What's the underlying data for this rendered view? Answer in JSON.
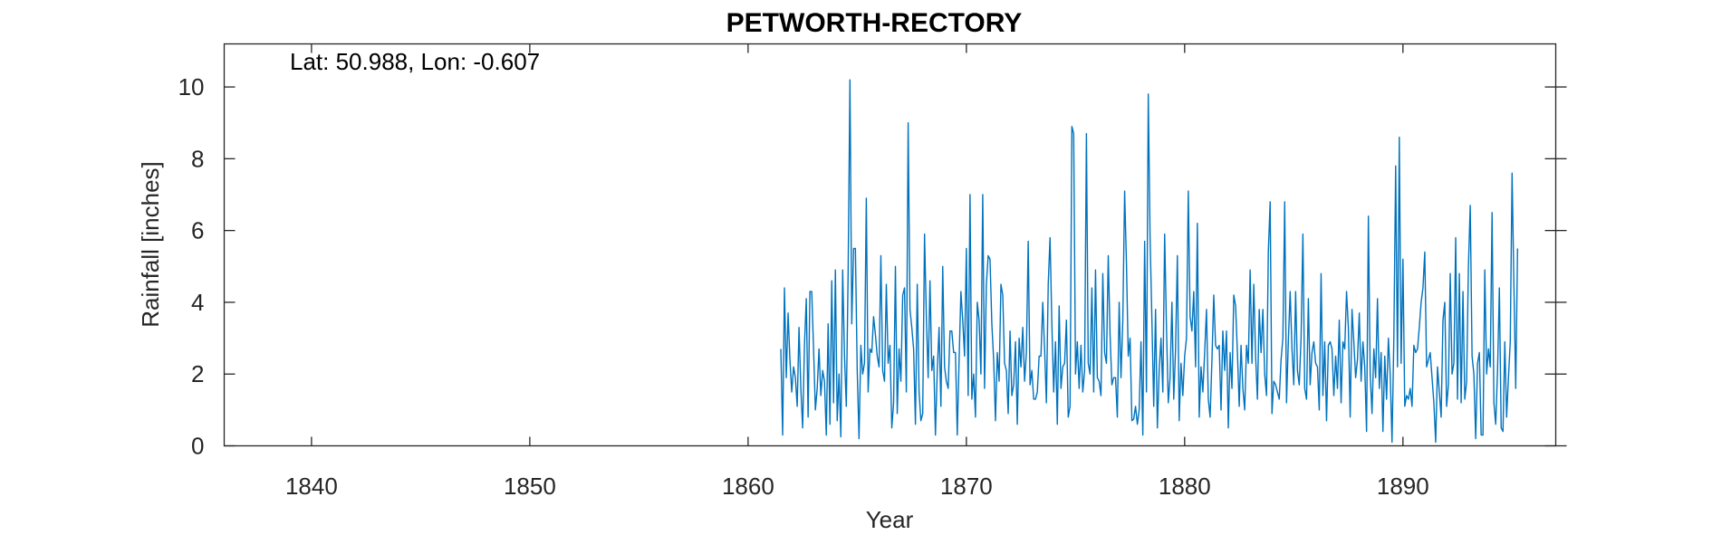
{
  "chart_data": {
    "type": "line",
    "title": "PETWORTH-RECTORY",
    "annotation": "Lat: 50.988, Lon: -0.607",
    "xlabel": "Year",
    "ylabel": "Rainfall [inches]",
    "xlim": [
      1836,
      1897
    ],
    "ylim": [
      0,
      11.2
    ],
    "xticks": [
      1840,
      1850,
      1860,
      1870,
      1880,
      1890
    ],
    "yticks": [
      0,
      2,
      4,
      6,
      8,
      10
    ],
    "grid": false,
    "line_color": "#0072BD",
    "series": [
      {
        "x_start": 1861.5,
        "x_step": 0.0833333,
        "values": [
          2.7,
          0.3,
          4.4,
          1.9,
          3.7,
          2.4,
          1.5,
          2.2,
          1.9,
          1.1,
          3.3,
          1.6,
          0.5,
          2.8,
          4.1,
          0.8,
          4.3,
          4.3,
          2.7,
          1.0,
          1.6,
          2.7,
          1.4,
          2.1,
          1.8,
          0.3,
          3.4,
          0.6,
          4.6,
          1.2,
          4.9,
          0.7,
          2.0,
          0.25,
          4.9,
          2.5,
          1.1,
          4.8,
          10.2,
          3.4,
          5.5,
          5.5,
          2.1,
          0.2,
          2.8,
          2.0,
          2.3,
          6.9,
          1.5,
          2.7,
          2.6,
          3.6,
          3.1,
          2.5,
          2.2,
          5.3,
          2.1,
          1.8,
          4.5,
          2.3,
          2.8,
          0.5,
          1.2,
          5.0,
          0.9,
          2.7,
          1.8,
          4.2,
          4.4,
          1.5,
          9.0,
          3.8,
          3.3,
          2.7,
          0.6,
          4.5,
          1.5,
          0.7,
          0.9,
          5.9,
          3.6,
          1.9,
          4.6,
          2.1,
          2.5,
          0.3,
          2.1,
          3.3,
          1.1,
          5.0,
          2.2,
          1.8,
          1.6,
          3.2,
          3.2,
          2.6,
          2.6,
          0.3,
          2.4,
          4.3,
          3.5,
          2.5,
          5.5,
          1.4,
          7.0,
          1.3,
          2.0,
          0.8,
          4.0,
          3.5,
          2.0,
          7.0,
          1.6,
          4.5,
          5.3,
          5.2,
          3.4,
          2.4,
          0.7,
          2.6,
          1.8,
          4.5,
          4.2,
          2.3,
          2.1,
          0.9,
          3.2,
          1.4,
          1.7,
          2.9,
          0.6,
          3.0,
          2.2,
          3.3,
          1.8,
          2.6,
          5.7,
          1.7,
          2.1,
          1.3,
          1.3,
          1.5,
          2.5,
          2.5,
          4.0,
          2.7,
          1.2,
          4.5,
          5.8,
          3.4,
          1.5,
          2.9,
          0.6,
          3.9,
          1.6,
          2.2,
          2.3,
          3.5,
          0.8,
          1.1,
          8.9,
          8.7,
          2.0,
          2.9,
          1.6,
          2.8,
          1.5,
          2.1,
          8.7,
          2.3,
          2.0,
          4.4,
          1.5,
          4.9,
          1.9,
          1.8,
          1.4,
          4.8,
          2.6,
          2.3,
          5.3,
          3.1,
          1.7,
          1.9,
          1.9,
          0.8,
          4.0,
          1.9,
          3.5,
          7.1,
          5.1,
          2.5,
          3.0,
          0.7,
          0.75,
          1.1,
          0.6,
          1.0,
          2.9,
          0.3,
          5.7,
          1.5,
          9.8,
          5.8,
          3.5,
          1.1,
          3.8,
          0.5,
          2.1,
          3.0,
          1.5,
          5.9,
          3.3,
          1.2,
          1.9,
          4.0,
          1.3,
          2.7,
          5.3,
          0.7,
          2.3,
          1.4,
          2.5,
          3.0,
          7.1,
          3.6,
          3.2,
          4.3,
          2.2,
          6.2,
          0.8,
          2.2,
          1.5,
          2.6,
          3.8,
          1.3,
          0.8,
          2.4,
          4.2,
          2.8,
          2.7,
          2.8,
          1.0,
          3.2,
          2.1,
          3.2,
          0.5,
          2.6,
          1.6,
          4.2,
          3.9,
          2.6,
          1.1,
          2.8,
          1.6,
          1.0,
          2.8,
          2.3,
          4.9,
          2.3,
          4.5,
          2.5,
          1.3,
          3.8,
          2.6,
          3.8,
          2.0,
          1.4,
          5.4,
          6.8,
          0.9,
          1.8,
          1.7,
          1.5,
          1.3,
          2.4,
          3.0,
          6.8,
          1.2,
          2.9,
          4.3,
          2.7,
          1.7,
          4.3,
          2.1,
          1.7,
          3.0,
          5.9,
          1.6,
          1.3,
          4.1,
          1.7,
          2.6,
          2.9,
          2.3,
          2.2,
          1.0,
          4.8,
          1.4,
          2.9,
          0.7,
          2.8,
          2.9,
          2.7,
          1.4,
          2.5,
          1.6,
          3.5,
          1.2,
          2.9,
          2.7,
          4.3,
          3.3,
          0.8,
          3.8,
          2.9,
          1.9,
          2.4,
          3.7,
          1.8,
          2.9,
          2.2,
          0.4,
          6.4,
          2.0,
          0.9,
          2.7,
          1.9,
          4.1,
          1.6,
          2.6,
          0.4,
          2.5,
          1.3,
          3.0,
          2.0,
          0.1,
          3.0,
          7.8,
          2.2,
          8.6,
          2.3,
          5.2,
          1.1,
          1.4,
          1.3,
          1.6,
          1.1,
          2.8,
          2.6,
          2.7,
          3.3,
          4.0,
          4.4,
          5.4,
          2.2,
          2.4,
          2.6,
          1.9,
          1.2,
          0.1,
          2.2,
          1.5,
          0.8,
          3.5,
          4.0,
          1.1,
          1.7,
          4.8,
          2.0,
          2.3,
          5.8,
          1.3,
          4.8,
          1.2,
          4.3,
          1.3,
          1.8,
          5.0,
          6.7,
          2.5,
          2.0,
          0.2,
          2.3,
          2.6,
          0.3,
          0.3,
          4.9,
          2.0,
          2.7,
          2.2,
          6.5,
          1.2,
          0.6,
          2.1,
          4.4,
          0.5,
          0.4,
          2.9,
          0.8,
          1.9,
          2.9,
          7.6,
          4.5,
          1.6,
          5.5
        ]
      }
    ]
  }
}
